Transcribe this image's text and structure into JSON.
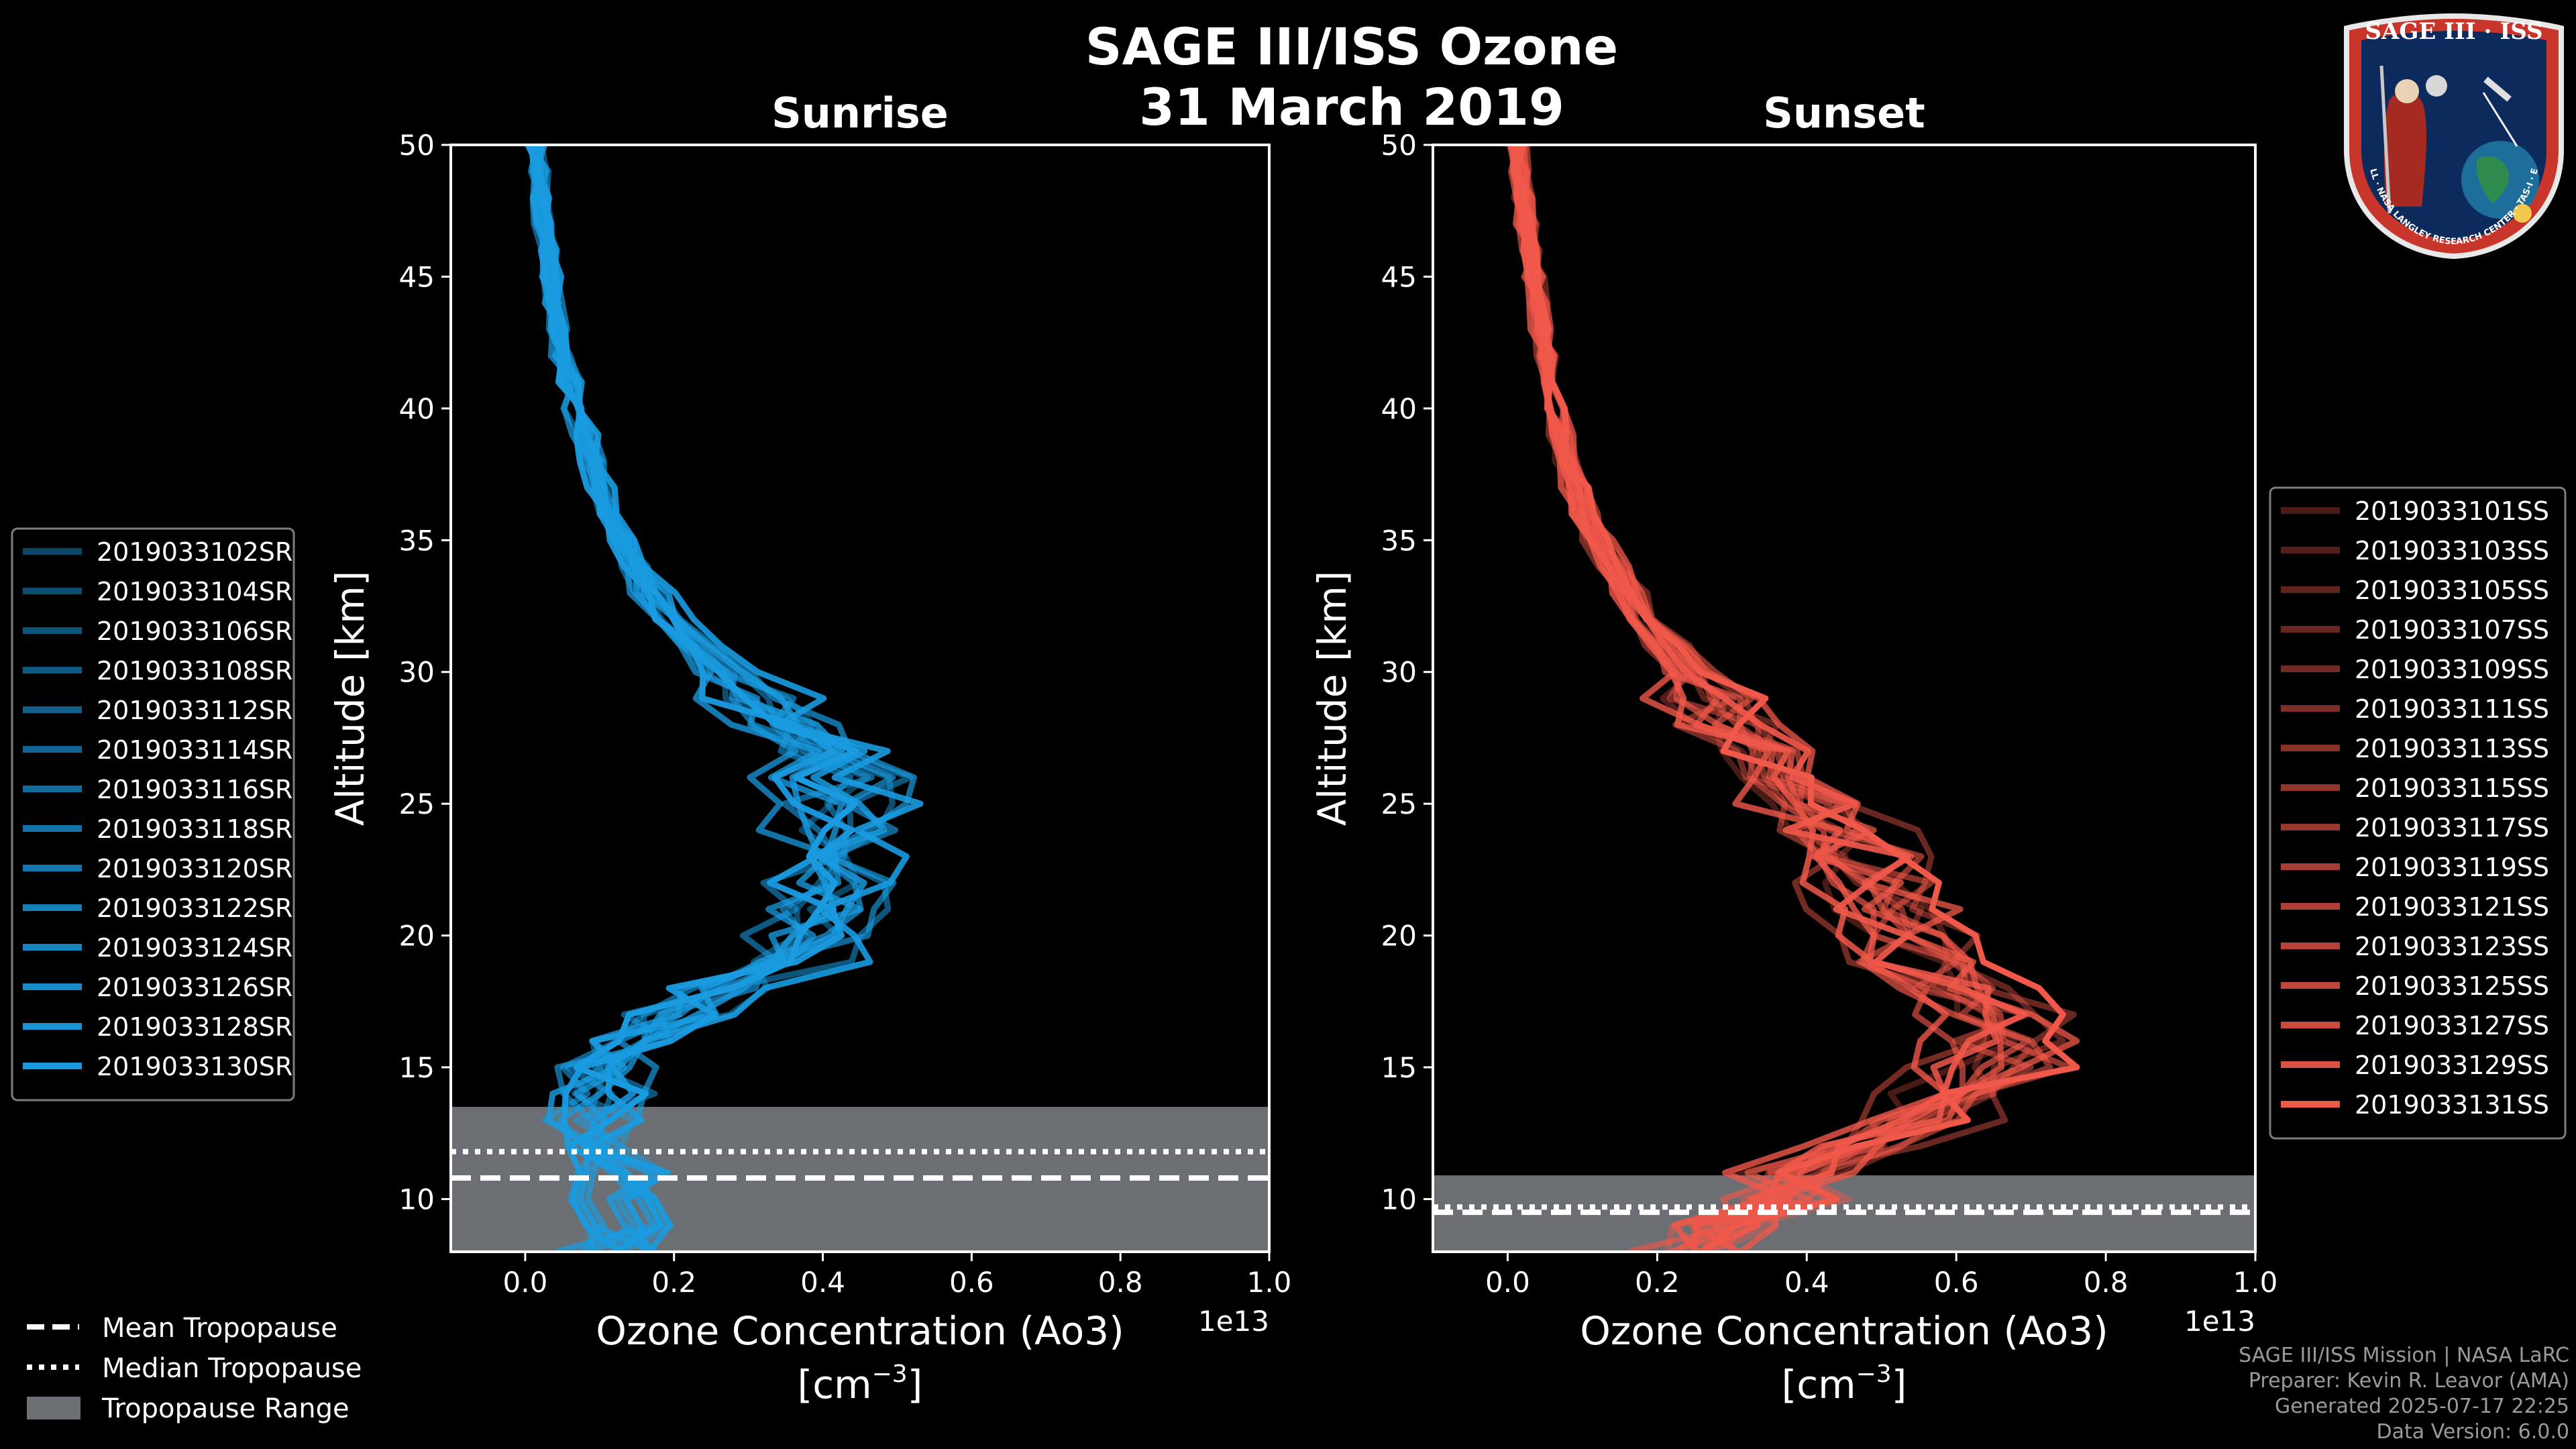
{
  "figure": {
    "title_line1": "SAGE III/ISS Ozone",
    "title_line2": "31 March 2019"
  },
  "colors": {
    "background": "#000000",
    "sunrise": "#1a9be0",
    "sunset": "#f0584a",
    "tropopause_range": "#6b6e72"
  },
  "chart_data": [
    {
      "type": "line",
      "panel": "left",
      "title": "Sunrise",
      "xlabel": "Ozone Concentration (Ao3)",
      "xunit_prefix": "[cm",
      "xunit_exp": "−3",
      "xunit_suffix": "]",
      "ylabel": "Altitude [km]",
      "x_offset_label": "1e13",
      "xlim": [
        -0.1,
        1.0
      ],
      "ylim": [
        8,
        50
      ],
      "xticks": [
        0.0,
        0.2,
        0.4,
        0.6,
        0.8,
        1.0
      ],
      "xtick_labels": [
        "0.0",
        "0.2",
        "0.4",
        "0.6",
        "0.8",
        "1.0"
      ],
      "yticks": [
        10,
        15,
        20,
        25,
        30,
        35,
        40,
        45,
        50
      ],
      "ytick_labels": [
        "10",
        "15",
        "20",
        "25",
        "30",
        "35",
        "40",
        "45",
        "50"
      ],
      "tropopause": {
        "range": [
          8,
          13.5
        ],
        "mean": 10.8,
        "median": 11.8
      },
      "reference_profile": {
        "alt": [
          8,
          9,
          10,
          11,
          12,
          13,
          14,
          15,
          16,
          17,
          18,
          19,
          20,
          21,
          22,
          23,
          24,
          25,
          26,
          27,
          28,
          29,
          30,
          31,
          32,
          33,
          34,
          35,
          36,
          37,
          38,
          39,
          40,
          41,
          42,
          43,
          44,
          45,
          46,
          47,
          48,
          49,
          50
        ],
        "conc": [
          0.12,
          0.13,
          0.13,
          0.12,
          0.11,
          0.1,
          0.1,
          0.11,
          0.14,
          0.2,
          0.28,
          0.35,
          0.39,
          0.41,
          0.42,
          0.42,
          0.42,
          0.43,
          0.42,
          0.4,
          0.36,
          0.31,
          0.27,
          0.23,
          0.2,
          0.17,
          0.15,
          0.13,
          0.11,
          0.1,
          0.09,
          0.08,
          0.07,
          0.06,
          0.05,
          0.045,
          0.04,
          0.035,
          0.03,
          0.025,
          0.02,
          0.02,
          0.015
        ]
      },
      "series": [
        {
          "name": "2019033102SR",
          "alpha": 0.45
        },
        {
          "name": "2019033104SR",
          "alpha": 0.5
        },
        {
          "name": "2019033106SR",
          "alpha": 0.55
        },
        {
          "name": "2019033108SR",
          "alpha": 0.58
        },
        {
          "name": "2019033112SR",
          "alpha": 0.62
        },
        {
          "name": "2019033114SR",
          "alpha": 0.66
        },
        {
          "name": "2019033116SR",
          "alpha": 0.7
        },
        {
          "name": "2019033118SR",
          "alpha": 0.74
        },
        {
          "name": "2019033120SR",
          "alpha": 0.78
        },
        {
          "name": "2019033122SR",
          "alpha": 0.82
        },
        {
          "name": "2019033124SR",
          "alpha": 0.86
        },
        {
          "name": "2019033126SR",
          "alpha": 0.9
        },
        {
          "name": "2019033128SR",
          "alpha": 0.95
        },
        {
          "name": "2019033130SR",
          "alpha": 1.0
        }
      ]
    },
    {
      "type": "line",
      "panel": "right",
      "title": "Sunset",
      "xlabel": "Ozone Concentration (Ao3)",
      "xunit_prefix": "[cm",
      "xunit_exp": "−3",
      "xunit_suffix": "]",
      "ylabel": "Altitude [km]",
      "x_offset_label": "1e13",
      "xlim": [
        -0.1,
        1.0
      ],
      "ylim": [
        8,
        50
      ],
      "xticks": [
        0.0,
        0.2,
        0.4,
        0.6,
        0.8,
        1.0
      ],
      "xtick_labels": [
        "0.0",
        "0.2",
        "0.4",
        "0.6",
        "0.8",
        "1.0"
      ],
      "yticks": [
        10,
        15,
        20,
        25,
        30,
        35,
        40,
        45,
        50
      ],
      "ytick_labels": [
        "10",
        "15",
        "20",
        "25",
        "30",
        "35",
        "40",
        "45",
        "50"
      ],
      "tropopause": {
        "range": [
          8,
          10.9
        ],
        "mean": 9.5,
        "median": 9.7
      },
      "reference_profile": {
        "alt": [
          8,
          9,
          10,
          11,
          12,
          13,
          14,
          15,
          16,
          17,
          18,
          19,
          20,
          21,
          22,
          23,
          24,
          25,
          26,
          27,
          28,
          29,
          30,
          31,
          32,
          33,
          34,
          35,
          36,
          37,
          38,
          39,
          40,
          41,
          42,
          43,
          44,
          45,
          46,
          47,
          48,
          49,
          50
        ],
        "conc": [
          0.25,
          0.3,
          0.35,
          0.4,
          0.47,
          0.54,
          0.6,
          0.65,
          0.66,
          0.64,
          0.6,
          0.55,
          0.52,
          0.5,
          0.48,
          0.46,
          0.43,
          0.4,
          0.37,
          0.33,
          0.3,
          0.27,
          0.24,
          0.21,
          0.18,
          0.16,
          0.14,
          0.12,
          0.1,
          0.09,
          0.08,
          0.07,
          0.06,
          0.055,
          0.05,
          0.045,
          0.04,
          0.035,
          0.03,
          0.025,
          0.02,
          0.017,
          0.013
        ]
      },
      "series": [
        {
          "name": "2019033101SS",
          "alpha": 0.3
        },
        {
          "name": "2019033103SS",
          "alpha": 0.35
        },
        {
          "name": "2019033105SS",
          "alpha": 0.4
        },
        {
          "name": "2019033107SS",
          "alpha": 0.44
        },
        {
          "name": "2019033109SS",
          "alpha": 0.48
        },
        {
          "name": "2019033111SS",
          "alpha": 0.52
        },
        {
          "name": "2019033113SS",
          "alpha": 0.56
        },
        {
          "name": "2019033115SS",
          "alpha": 0.6
        },
        {
          "name": "2019033117SS",
          "alpha": 0.64
        },
        {
          "name": "2019033119SS",
          "alpha": 0.68
        },
        {
          "name": "2019033121SS",
          "alpha": 0.72
        },
        {
          "name": "2019033123SS",
          "alpha": 0.76
        },
        {
          "name": "2019033125SS",
          "alpha": 0.8
        },
        {
          "name": "2019033127SS",
          "alpha": 0.85
        },
        {
          "name": "2019033129SS",
          "alpha": 0.92
        },
        {
          "name": "2019033131SS",
          "alpha": 1.0
        }
      ]
    }
  ],
  "tropo_legend": {
    "mean": "Mean Tropopause",
    "median": "Median Tropopause",
    "range": "Tropopause Range"
  },
  "footer": {
    "line1": "SAGE III/ISS Mission | NASA LaRC",
    "line2": "Preparer: Kevin R. Leavor (AMA)",
    "line3": "Generated 2025-07-17 22:25",
    "line4": "Data Version: 6.0.0"
  },
  "logo": {
    "title": "SAGE III · ISS",
    "ring_text": "BALL · NASA LANGLEY RESEARCH CENTER · TAS-I · ESA"
  }
}
